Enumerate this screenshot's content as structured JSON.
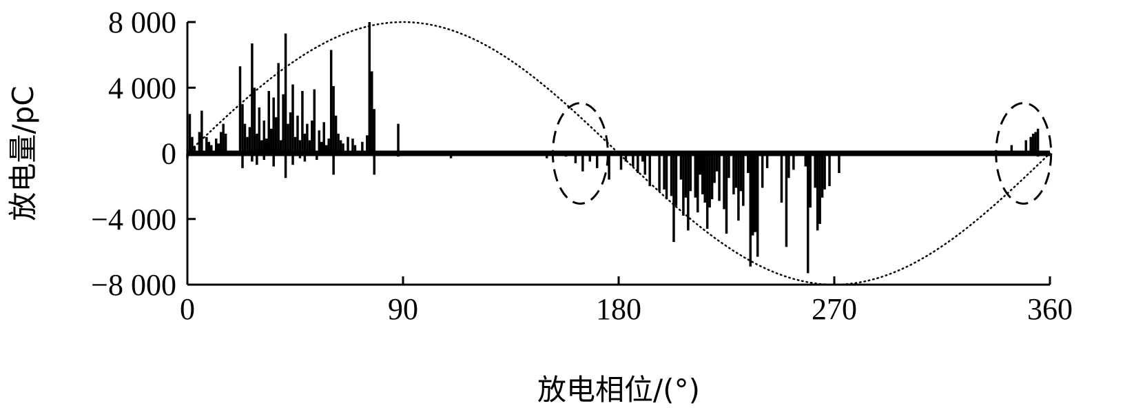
{
  "chart_data": {
    "type": "bar",
    "title": "",
    "xlabel": "放电相位/(°)",
    "ylabel": "放电量/pC",
    "xlim": [
      0,
      360
    ],
    "ylim": [
      -8000,
      8000
    ],
    "x_ticks": [
      0,
      90,
      180,
      270,
      360
    ],
    "x_tick_labels": [
      "0",
      "90",
      "180",
      "270",
      "360"
    ],
    "y_ticks": [
      8000,
      4000,
      0,
      -4000,
      -8000
    ],
    "y_tick_labels": [
      "8 000",
      "4 000",
      "0",
      "−4 000",
      "−8 000"
    ],
    "grid": false,
    "legend": "none",
    "reference_curve": {
      "type": "sine",
      "amplitude": 8000,
      "period_deg": 360,
      "style": "dotted"
    },
    "highlight_regions": [
      {
        "center_deg": 164,
        "center_pc": 0,
        "style": "dashed-ellipse"
      },
      {
        "center_deg": 349,
        "center_pc": 0,
        "style": "dashed-ellipse"
      }
    ],
    "series": [
      {
        "x": [
          1,
          2,
          3,
          5,
          6,
          8,
          9,
          10,
          12,
          13,
          14,
          15,
          16,
          22,
          23,
          24,
          25,
          26,
          27,
          28,
          29,
          30,
          31,
          32,
          33,
          34,
          35,
          36,
          37,
          38,
          39,
          40,
          41,
          42,
          43,
          44,
          45,
          46,
          47,
          48,
          49,
          50,
          51,
          52,
          53,
          55,
          56,
          57,
          58,
          59,
          60,
          61,
          62,
          63,
          64,
          65,
          67,
          69,
          70,
          73,
          75,
          76,
          77,
          78,
          88,
          344,
          350,
          352,
          353,
          354,
          355
        ],
        "values": [
          2400,
          1000,
          400,
          1300,
          2600,
          1000,
          700,
          500,
          900,
          600,
          1300,
          1800,
          1200,
          5300,
          3000,
          1800,
          1000,
          1600,
          6700,
          4000,
          1200,
          2800,
          800,
          2000,
          900,
          3800,
          1500,
          3400,
          2200,
          5500,
          800,
          3600,
          7300,
          1800,
          2500,
          4200,
          1000,
          2300,
          800,
          3800,
          1200,
          1800,
          800,
          2000,
          3900,
          1400,
          700,
          1900,
          500,
          900,
          6300,
          4100,
          2300,
          1200,
          800,
          600,
          1000,
          900,
          500,
          700,
          1100,
          8000,
          5000,
          2700,
          1800,
          500,
          800,
          1000,
          1200,
          1300,
          1500
        ]
      },
      {
        "x": [
          0,
          23,
          27,
          29,
          32,
          36,
          41,
          44,
          47,
          49,
          54,
          61,
          78,
          88,
          110,
          150,
          158,
          162,
          165,
          168,
          171,
          176,
          181,
          183,
          186,
          188,
          190,
          191,
          193,
          197,
          199,
          200,
          202,
          203,
          204,
          206,
          207,
          208,
          209,
          210,
          212,
          213,
          214,
          215,
          216,
          217,
          218,
          219,
          220,
          221,
          222,
          224,
          225,
          226,
          228,
          229,
          230,
          231,
          232,
          234,
          235,
          236,
          237,
          238,
          240,
          242,
          248,
          250,
          251,
          253,
          258,
          259,
          260,
          262,
          263,
          264,
          265,
          266,
          268,
          272,
          355
        ],
        "values": [
          -300,
          -900,
          -500,
          -700,
          -400,
          -800,
          -1500,
          -700,
          -300,
          -500,
          -400,
          -1300,
          -1300,
          -200,
          -300,
          -300,
          -200,
          -600,
          -1100,
          -500,
          -900,
          -1600,
          -1000,
          -500,
          -800,
          -1200,
          -500,
          -1300,
          -2000,
          -2300,
          -2200,
          -2800,
          -2600,
          -5400,
          -3200,
          -1600,
          -3800,
          -2700,
          -4700,
          -2300,
          -2700,
          -3600,
          -1300,
          -2500,
          -3000,
          -4600,
          -3300,
          -2800,
          -1800,
          -1100,
          -2900,
          -3400,
          -4900,
          -1500,
          -2500,
          -2100,
          -4100,
          -2300,
          -3200,
          -1200,
          -6900,
          -5000,
          -4800,
          -6300,
          -2100,
          -900,
          -3000,
          -5700,
          -1500,
          -1000,
          -800,
          -7300,
          -3300,
          -2100,
          -4700,
          -4300,
          -2700,
          -2200,
          -2000,
          -1200,
          -200
        ]
      }
    ]
  }
}
